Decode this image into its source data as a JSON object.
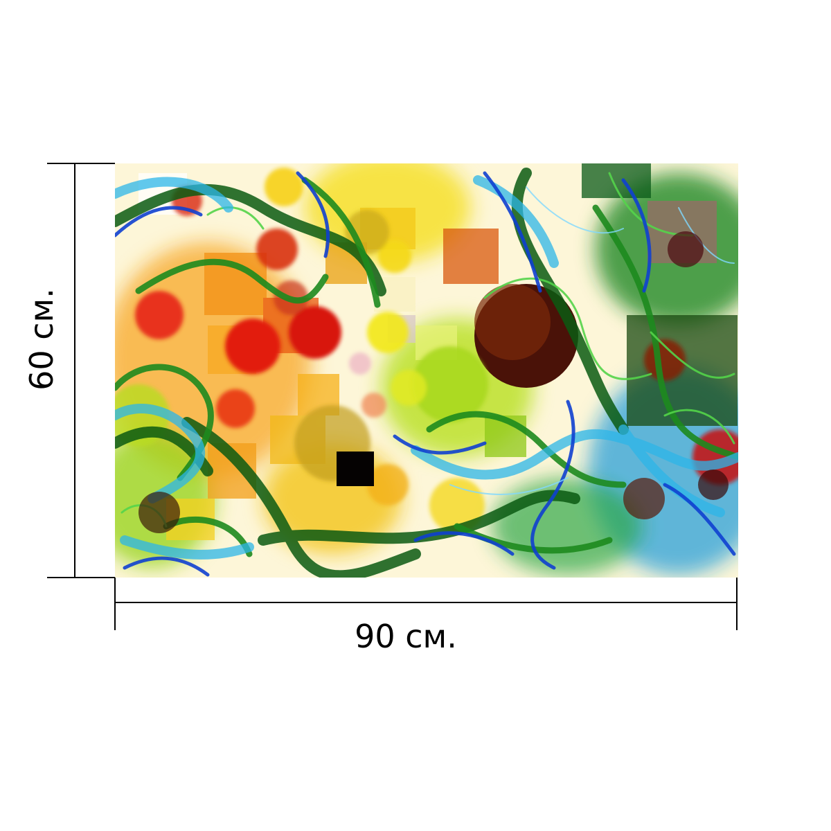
{
  "product": {
    "image_name": "abstract-colorful-swirls-print",
    "palette": {
      "red": "#e3120b",
      "orange": "#f28a0a",
      "yellow": "#f7e21a",
      "lime": "#a8d820",
      "green": "#1e8a1a",
      "dark_green": "#0b3d10",
      "blue": "#1050d8",
      "cyan": "#2cb6e8",
      "maroon": "#5a1208",
      "black": "#000000"
    }
  },
  "dimensions": {
    "width_label": "90 см.",
    "height_label": "60 см."
  }
}
